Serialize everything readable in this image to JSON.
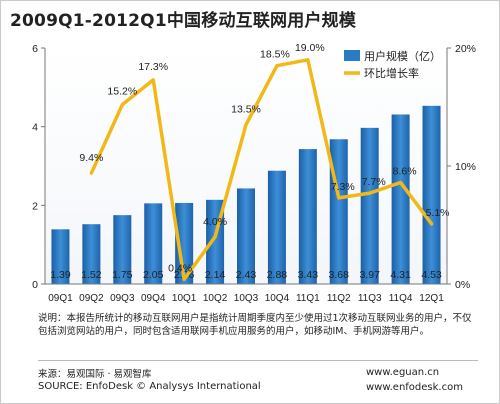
{
  "title": "2009Q1-2012Q1中国移动互联网用户规模",
  "chart_data": {
    "type": "bar",
    "categories": [
      "09Q1",
      "09Q2",
      "09Q3",
      "09Q4",
      "10Q1",
      "10Q2",
      "10Q3",
      "10Q4",
      "11Q1",
      "11Q2",
      "11Q3",
      "11Q4",
      "12Q1"
    ],
    "series": [
      {
        "name": "用户规模（亿）",
        "type": "bar",
        "axis": "left",
        "color": "#2b7bc4",
        "values": [
          1.39,
          1.52,
          1.75,
          2.05,
          2.06,
          2.14,
          2.43,
          2.88,
          3.43,
          3.68,
          3.97,
          4.31,
          4.53
        ],
        "labels": [
          "1.39",
          "1.52",
          "1.75",
          "2.05",
          "2.06",
          "2.14",
          "2.43",
          "2.88",
          "3.43",
          "3.68",
          "3.97",
          "4.31",
          "4.53"
        ]
      },
      {
        "name": "环比增长率",
        "type": "line",
        "axis": "right",
        "color": "#f2b818",
        "values": [
          null,
          9.4,
          15.2,
          17.3,
          0.4,
          4.0,
          13.5,
          18.5,
          19.0,
          7.3,
          7.7,
          8.6,
          5.1
        ],
        "labels": [
          "",
          "9.4%",
          "15.2%",
          "17.3%",
          "0.4%",
          "4.0%",
          "13.5%",
          "18.5%",
          "19.0%",
          "7.3%",
          "7.7%",
          "8.6%",
          "5.1%"
        ]
      }
    ],
    "y_left": {
      "min": 0,
      "max": 6,
      "ticks": [
        "0",
        "2",
        "4",
        "6"
      ]
    },
    "y_right": {
      "min": 0,
      "max": 20,
      "ticks": [
        "0%",
        "10%",
        "20%"
      ]
    },
    "grid": false,
    "legend": "top-right"
  },
  "note": "说明：本报告所统计的移动互联网用户是指统计周期季度内至少使用过1次移动互联网业务的用户，不仅包括浏览网站的用户，同时包含适用联网手机应用服务的用户，如移动IM、手机网游等用户。",
  "source_cn": "来源：易观国际 · 易观智库",
  "source_en": "SOURCE: EnfoDesk © Analysys International",
  "url1": "www.eguan.cn",
  "url2": "www.enfodesk.com"
}
